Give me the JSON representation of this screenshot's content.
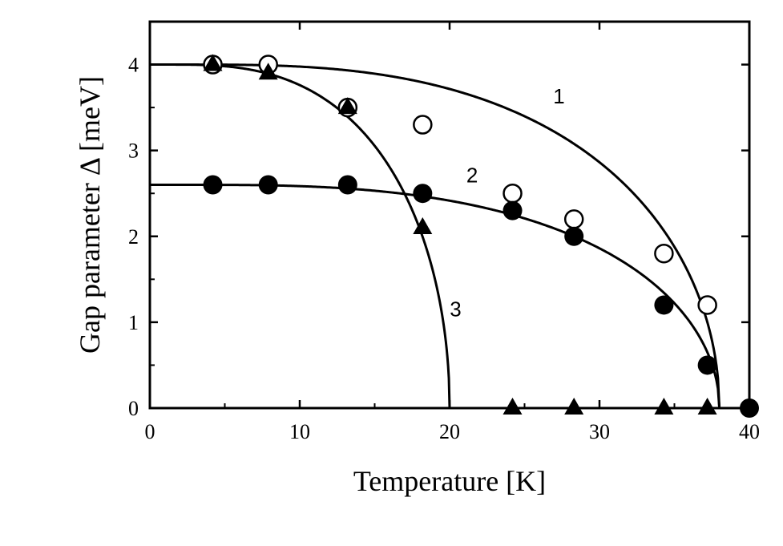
{
  "chart_data": {
    "type": "scatter",
    "xlabel": "Temperature [K]",
    "ylabel": "Gap parameter Δ [meV]",
    "xlim": [
      0,
      40
    ],
    "ylim": [
      0,
      4.5
    ],
    "x_ticks": [
      0,
      10,
      20,
      30,
      40
    ],
    "y_ticks": [
      0,
      1,
      2,
      3,
      4
    ],
    "grid": false,
    "series": [
      {
        "marker": "open-circle",
        "x": [
          4.2,
          7.9,
          13.2,
          18.2,
          24.2,
          28.3,
          34.3,
          37.2
        ],
        "y": [
          4.0,
          4.0,
          3.5,
          3.3,
          2.5,
          2.2,
          1.8,
          1.2
        ]
      },
      {
        "marker": "filled-circle",
        "x": [
          4.2,
          7.9,
          13.2,
          18.2,
          24.2,
          28.3,
          34.3,
          37.2,
          40.0
        ],
        "y": [
          2.6,
          2.6,
          2.6,
          2.5,
          2.3,
          2.0,
          1.2,
          0.5,
          0.0
        ]
      },
      {
        "marker": "filled-triangle",
        "x": [
          4.2,
          7.9,
          13.2,
          18.2,
          24.2,
          28.3,
          34.3,
          37.2
        ],
        "y": [
          4.0,
          3.9,
          3.5,
          2.1,
          0.0,
          0.0,
          0.0,
          0.0
        ]
      }
    ],
    "curves": [
      {
        "label": "1",
        "delta0": 4.0,
        "tc": 38.0
      },
      {
        "label": "2",
        "delta0": 2.6,
        "tc": 38.0
      },
      {
        "label": "3",
        "delta0": 4.0,
        "tc": 20.0
      }
    ]
  }
}
